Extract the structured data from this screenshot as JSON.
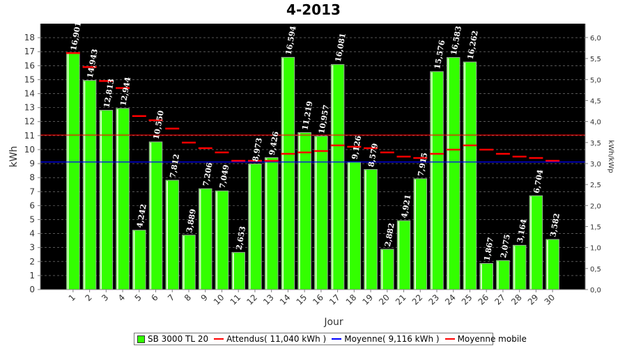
{
  "chart_data": {
    "type": "bar",
    "title": "4-2013",
    "xlabel": "Jour",
    "ylabel": "kWh",
    "y2label": "kWh/kWp",
    "ylim": [
      0,
      19
    ],
    "y2lim": [
      0,
      6.33
    ],
    "yticks": [
      0,
      1,
      2,
      3,
      4,
      5,
      6,
      7,
      8,
      9,
      10,
      11,
      12,
      13,
      14,
      15,
      16,
      17,
      18
    ],
    "y2ticks": [
      "0,0",
      "0,5",
      "1,0",
      "1,5",
      "2,0",
      "2,5",
      "3,0",
      "3,5",
      "4,0",
      "4,5",
      "5,0",
      "5,5",
      "6,0"
    ],
    "grid": true,
    "legend_position": "bottom",
    "categories": [
      "1",
      "2",
      "3",
      "4",
      "5",
      "6",
      "7",
      "8",
      "9",
      "10",
      "11",
      "12",
      "13",
      "14",
      "15",
      "16",
      "17",
      "18",
      "19",
      "20",
      "21",
      "22",
      "23",
      "24",
      "25",
      "26",
      "27",
      "28",
      "29",
      "30"
    ],
    "series": [
      {
        "name": "SB 3000 TL 20",
        "kind": "bar",
        "color": "#33ff00",
        "values": [
          16.901,
          14.943,
          12.813,
          12.944,
          4.242,
          10.55,
          7.812,
          3.889,
          7.206,
          7.049,
          2.653,
          8.973,
          9.426,
          16.594,
          11.219,
          10.957,
          16.081,
          9.126,
          8.579,
          2.882,
          4.921,
          7.915,
          15.576,
          16.583,
          16.262,
          1.867,
          2.075,
          3.164,
          6.704,
          3.582
        ],
        "labels": [
          "16,901",
          "14,943",
          "12,813",
          "12,944",
          "4,242",
          "10,550",
          "7,812",
          "3,889",
          "7,206",
          "7,049",
          "2,653",
          "8,973",
          "9,426",
          "16,594",
          "11,219",
          "10,957",
          "16,081",
          "9,126",
          "8,579",
          "2,882",
          "4,921",
          "7,915",
          "15,576",
          "16,583",
          "16,262",
          "1,867",
          "2,075",
          "3,164",
          "6,704",
          "3,582"
        ]
      },
      {
        "name": "Attendus( 11,040 kWh )",
        "kind": "hline",
        "color": "#ff0000",
        "value": 11.04
      },
      {
        "name": "Moyenne( 9,116 kWh )",
        "kind": "hline",
        "color": "#0000ff",
        "value": 9.116
      },
      {
        "name": "Moyenne mobile",
        "kind": "step",
        "color": "#ff0000",
        "values": [
          16.9,
          15.9,
          14.9,
          14.4,
          12.4,
          12.1,
          11.5,
          10.5,
          10.1,
          9.8,
          9.2,
          9.2,
          9.2,
          9.7,
          9.8,
          9.9,
          10.3,
          10.2,
          10.1,
          9.8,
          9.5,
          9.4,
          9.7,
          10.0,
          10.3,
          10.0,
          9.7,
          9.5,
          9.4,
          9.2
        ]
      }
    ]
  }
}
